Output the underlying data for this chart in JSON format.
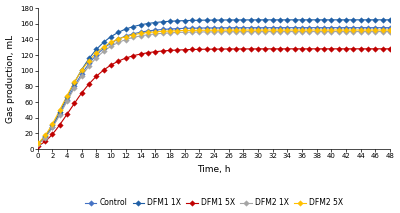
{
  "title": "",
  "xlabel": "Time, h",
  "ylabel": "Gas production, mL",
  "xlim": [
    0,
    48
  ],
  "ylim": [
    0,
    180
  ],
  "xticks": [
    0,
    2,
    4,
    6,
    8,
    10,
    12,
    14,
    16,
    18,
    20,
    22,
    24,
    26,
    28,
    30,
    32,
    34,
    36,
    38,
    40,
    42,
    44,
    46,
    48
  ],
  "yticks": [
    0,
    20,
    40,
    60,
    80,
    100,
    120,
    140,
    160,
    180
  ],
  "series": [
    {
      "name": "Control",
      "color": "#4472C4",
      "marker": "D",
      "markersize": 2.8,
      "linewidth": 0.8,
      "A": 155,
      "mu": 18.0,
      "lag": 0.5
    },
    {
      "name": "DFM1 1X",
      "color": "#1F5FA6",
      "marker": "D",
      "markersize": 2.8,
      "linewidth": 0.8,
      "A": 165,
      "mu": 19.0,
      "lag": 0.5
    },
    {
      "name": "DFM1 5X",
      "color": "#C00000",
      "marker": "D",
      "markersize": 2.8,
      "linewidth": 0.8,
      "A": 128,
      "mu": 14.0,
      "lag": 0.8
    },
    {
      "name": "DFM2 1X",
      "color": "#A5A5A5",
      "marker": "D",
      "markersize": 2.8,
      "linewidth": 0.8,
      "A": 150,
      "mu": 17.5,
      "lag": 0.5
    },
    {
      "name": "DFM2 5X",
      "color": "#FFC000",
      "marker": "D",
      "markersize": 2.8,
      "linewidth": 0.8,
      "A": 152,
      "mu": 18.5,
      "lag": 0.3
    }
  ],
  "background_color": "#FFFFFF",
  "tick_fontsize": 5.0,
  "label_fontsize": 6.5,
  "legend_fontsize": 5.5
}
